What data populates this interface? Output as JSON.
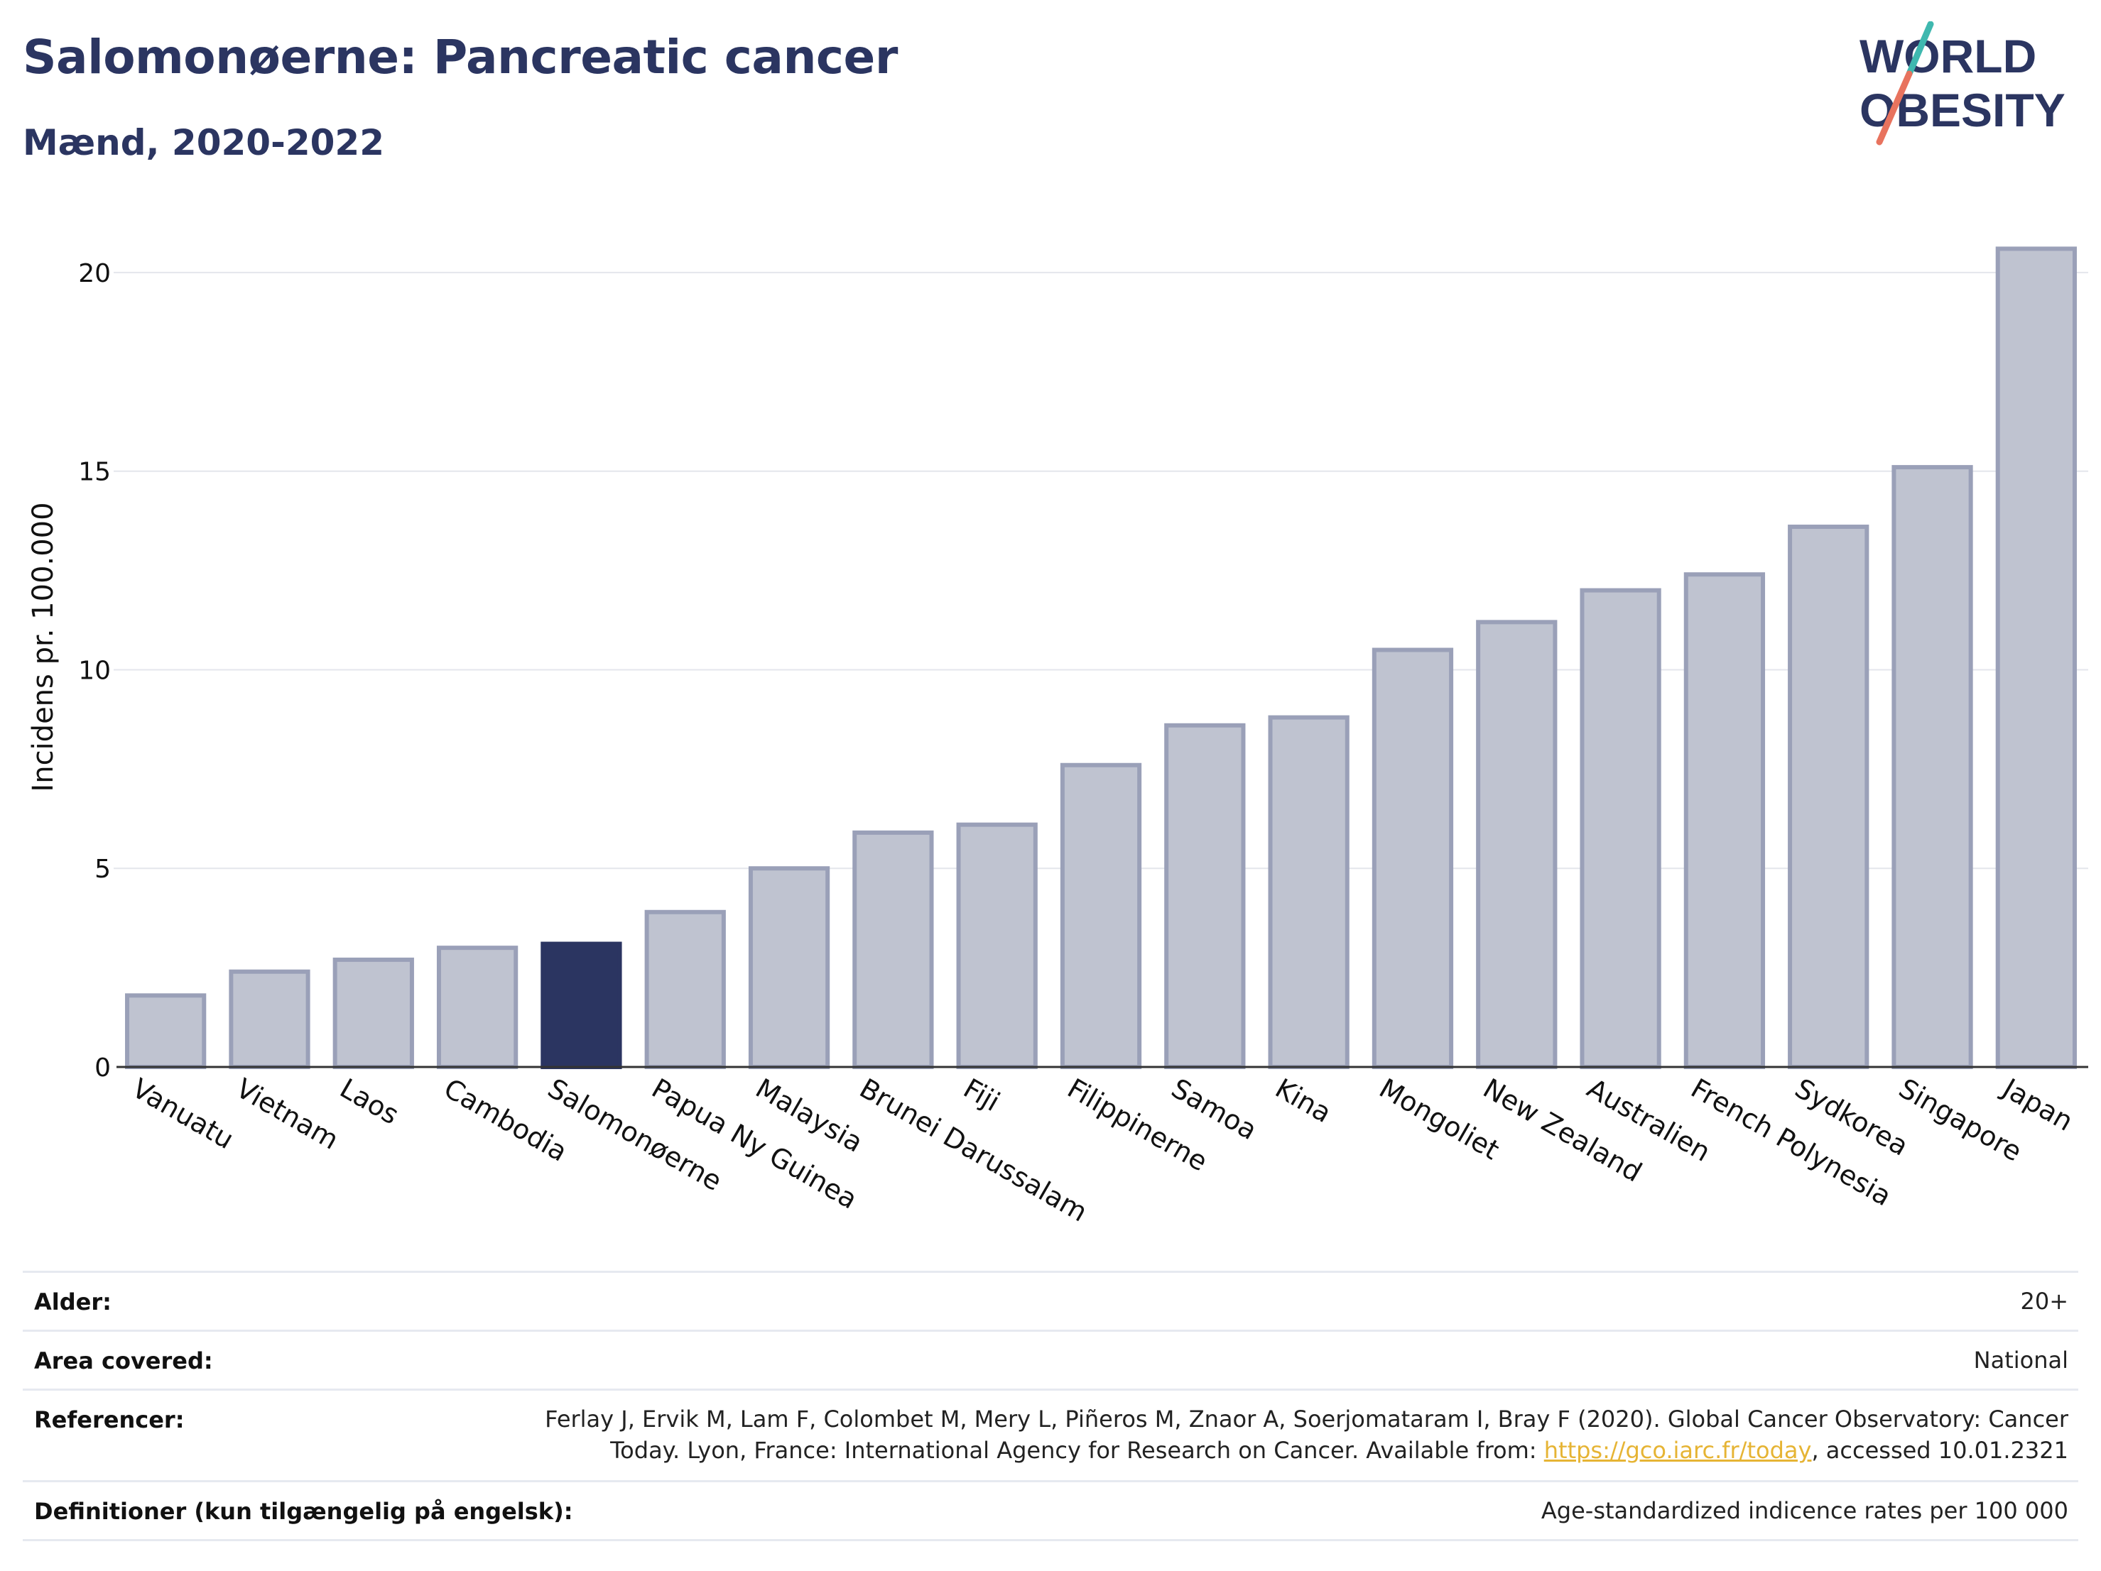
{
  "header": {
    "title": "Salomonøerne: Pancreatic cancer",
    "subtitle": "Mænd, 2020-2022"
  },
  "logo": {
    "line1": "WORLD",
    "line2": "OBESITY",
    "slash_colors": [
      "#3fb8af",
      "#e8735e"
    ]
  },
  "chart_data": {
    "type": "bar",
    "ylabel": "Incidens pr. 100.000",
    "ylim": [
      0,
      21.5
    ],
    "yticks": [
      0,
      5,
      10,
      15,
      20
    ],
    "grid": true,
    "categories": [
      "Vanuatu",
      "Vietnam",
      "Laos",
      "Cambodia",
      "Salomonøerne",
      "Papua Ny Guinea",
      "Malaysia",
      "Brunei Darussalam",
      "Fiji",
      "Filippinerne",
      "Samoa",
      "Kina",
      "Mongoliet",
      "New Zealand",
      "Australien",
      "French Polynesia",
      "Sydkorea",
      "Singapore",
      "Japan"
    ],
    "values": [
      1.8,
      2.4,
      2.7,
      3.0,
      3.1,
      3.9,
      5.0,
      5.9,
      6.1,
      7.6,
      8.6,
      8.8,
      10.5,
      11.2,
      12.0,
      12.4,
      13.6,
      15.1,
      20.6
    ],
    "highlight": "Salomonøerne",
    "colors": {
      "bar": "#bfc3d0",
      "bar_border": "#9aa0b8",
      "highlight": "#2b3561"
    }
  },
  "meta": [
    {
      "label": "Alder:",
      "value": "20+"
    },
    {
      "label": "Area covered:",
      "value": "National"
    },
    {
      "label": "Referencer:",
      "value_line1": "Ferlay J, Ervik M, Lam F, Colombet M, Mery L, Piñeros M, Znaor A, Soerjomataram I, Bray F (2020). Global Cancer Observatory: Cancer",
      "value_line2_pre": "Today. Lyon, France: International Agency for Research on Cancer. Available from: ",
      "link": "https://gco.iarc.fr/today",
      "value_line2_post": ", accessed 10.01.2321"
    },
    {
      "label": "Definitioner (kun tilgængelig på engelsk):",
      "value": "Age-standardized indicence rates per 100 000"
    }
  ]
}
